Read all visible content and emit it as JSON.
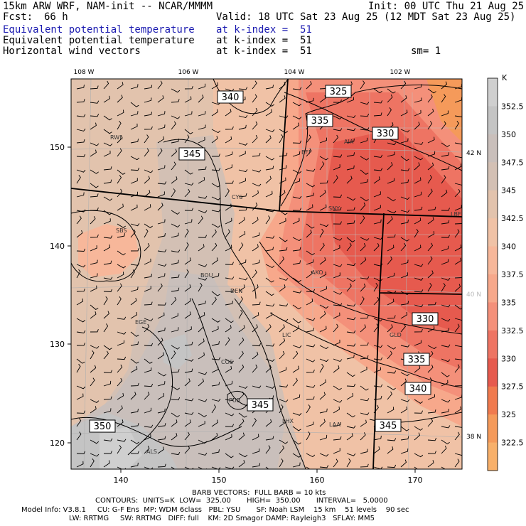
{
  "header": {
    "model": "15km ARW WRF, NAM-init -- NCAR/MMMM",
    "init": "Init: 00 UTC Thu 21 Aug 25",
    "fcst_label": "Fcst:",
    "fcst_value": "66 h",
    "valid": "Valid: 18 UTC Sat 23 Aug 25 (12 MDT Sat 23 Aug 25)",
    "field1": "Equivalent potential temperature",
    "field1_level": "at k-index =  51",
    "field2": "Equivalent potential temperature",
    "field2_level": "at k-index =  51",
    "field3": "Horizontal wind vectors",
    "field3_level": "at k-index =  51",
    "smoothing": "sm= 1",
    "accent_color": "#1a1ab0"
  },
  "map": {
    "top_lon_labels": [
      "108 W",
      "106 W",
      "104 W",
      "102 W"
    ],
    "right_lat_labels": [
      "42 N",
      "40 N",
      "38 N"
    ],
    "bottom_grid_labels": [
      "140",
      "150",
      "160",
      "170"
    ],
    "left_grid_labels": [
      "150",
      "140",
      "130",
      "120"
    ],
    "cities": [
      "RWL",
      "BFF",
      "AIA",
      "CYS",
      "SNY",
      "LBF",
      "SBS",
      "BOU",
      "AKO",
      "DEN",
      "LIC",
      "GLD",
      "EGE",
      "COS",
      "PUB",
      "LHX",
      "LAA",
      "ALS"
    ],
    "contour_labels": [
      "325",
      "340",
      "335",
      "330",
      "345",
      "330",
      "335",
      "340",
      "345",
      "350",
      "345"
    ]
  },
  "colorbar": {
    "unit": "K",
    "labels": [
      "352.5",
      "350",
      "347.5",
      "345",
      "342.5",
      "340",
      "337.5",
      "335",
      "332.5",
      "330",
      "327.5",
      "325",
      "322.5"
    ],
    "colors": [
      "#cfcfcf",
      "#c4c4c4",
      "#c9bfbb",
      "#d3c0b4",
      "#e2c3ad",
      "#f0c2a6",
      "#f7b79a",
      "#f7a88b",
      "#f4907a",
      "#ee7463",
      "#e65a4e",
      "#f07a4e",
      "#f59a5a",
      "#f8b06a"
    ]
  },
  "footer": {
    "barbs": "BARB VECTORS:  FULL BARB = 10 kts",
    "contours": "CONTOURS:  UNITS=K  LOW=  325.00       HIGH=  350.00       INTERVAL=   5.0000",
    "model_info_1": "Model Info: V3.8.1     CU: G-F Ens  MP: WDM 6class   PBL: YSU       SF: Noah LSM    15 km    51 levels    90 sec",
    "model_info_2": "LW: RRTMG     SW: RRTMG   DIFF: full    KM: 2D Smagor DAMP: Rayleigh3   SFLAY: MM5"
  }
}
